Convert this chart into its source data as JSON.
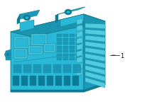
{
  "background_color": "#ffffff",
  "part_color": "#29b8d8",
  "part_color_dark": "#1a9ab8",
  "part_color_darker": "#0d7a96",
  "part_color_light": "#50cce0",
  "outline_color": "#1a7a8a",
  "label_text": "1",
  "label_color": "#000000",
  "label_fontsize": 6,
  "figsize": [
    2.0,
    1.47
  ],
  "dpi": 100,
  "line_color": "#1a7a8a"
}
